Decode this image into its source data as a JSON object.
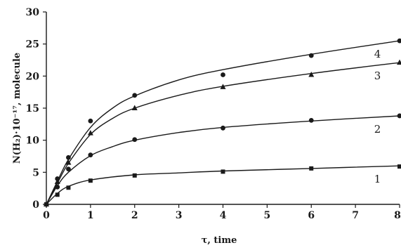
{
  "chart_data": {
    "type": "scatter",
    "xlabel": "τ, time",
    "ylabel": "N(H₂)·10⁻¹⁷, molecule",
    "xlim": [
      0,
      8
    ],
    "ylim": [
      0,
      30
    ],
    "xticks": [
      "0",
      "1",
      "2",
      "3",
      "4",
      "5",
      "6",
      "7",
      "8"
    ],
    "yticks": [
      "0",
      "5",
      "10",
      "15",
      "20",
      "25",
      "30"
    ],
    "grid": false,
    "legend": "curve labels at right end",
    "series": [
      {
        "label": "1",
        "marker": "square",
        "points": [
          [
            0,
            0
          ],
          [
            0.25,
            1.5
          ],
          [
            0.5,
            2.6
          ],
          [
            1,
            3.7
          ],
          [
            2,
            4.5
          ],
          [
            4,
            5.1
          ],
          [
            6,
            5.6
          ],
          [
            8,
            5.9
          ]
        ],
        "fit": [
          [
            0,
            0
          ],
          [
            0.25,
            1.7
          ],
          [
            0.5,
            2.8
          ],
          [
            1,
            3.8
          ],
          [
            2,
            4.6
          ],
          [
            3,
            4.9
          ],
          [
            4,
            5.2
          ],
          [
            6,
            5.6
          ],
          [
            8,
            6.0
          ]
        ]
      },
      {
        "label": "2",
        "marker": "circle",
        "points": [
          [
            0,
            0
          ],
          [
            0.25,
            2.7
          ],
          [
            0.5,
            5.5
          ],
          [
            1,
            7.7
          ],
          [
            2,
            10.1
          ],
          [
            4,
            11.9
          ],
          [
            6,
            13.1
          ],
          [
            8,
            13.8
          ]
        ],
        "fit": [
          [
            0,
            0
          ],
          [
            0.25,
            2.9
          ],
          [
            0.5,
            5.0
          ],
          [
            1,
            7.6
          ],
          [
            1.5,
            9.0
          ],
          [
            2,
            10.0
          ],
          [
            3,
            11.2
          ],
          [
            4,
            12.0
          ],
          [
            6,
            13.0
          ],
          [
            8,
            13.8
          ]
        ]
      },
      {
        "label": "3",
        "marker": "triangle",
        "points": [
          [
            0,
            0
          ],
          [
            0.25,
            3.5
          ],
          [
            0.5,
            6.5
          ],
          [
            1,
            11.1
          ],
          [
            2,
            15.0
          ],
          [
            4,
            18.3
          ],
          [
            6,
            20.2
          ],
          [
            8,
            22.1
          ]
        ],
        "fit": [
          [
            0,
            0
          ],
          [
            0.25,
            3.3
          ],
          [
            0.5,
            6.4
          ],
          [
            1,
            10.9
          ],
          [
            1.5,
            13.4
          ],
          [
            2,
            15.0
          ],
          [
            3,
            17.0
          ],
          [
            4,
            18.4
          ],
          [
            6,
            20.4
          ],
          [
            8,
            22.1
          ]
        ]
      },
      {
        "label": "4",
        "marker": "circle",
        "points": [
          [
            0,
            0
          ],
          [
            0.25,
            4.0
          ],
          [
            0.5,
            7.3
          ],
          [
            1,
            13.0
          ],
          [
            2,
            17.0
          ],
          [
            4,
            20.2
          ],
          [
            6,
            23.2
          ],
          [
            8,
            25.5
          ]
        ],
        "fit": [
          [
            0,
            0
          ],
          [
            0.25,
            3.6
          ],
          [
            0.5,
            7.0
          ],
          [
            1,
            12.0
          ],
          [
            1.5,
            15.0
          ],
          [
            2,
            16.9
          ],
          [
            3,
            19.4
          ],
          [
            4,
            21.0
          ],
          [
            6,
            23.4
          ],
          [
            8,
            25.5
          ]
        ]
      }
    ]
  }
}
